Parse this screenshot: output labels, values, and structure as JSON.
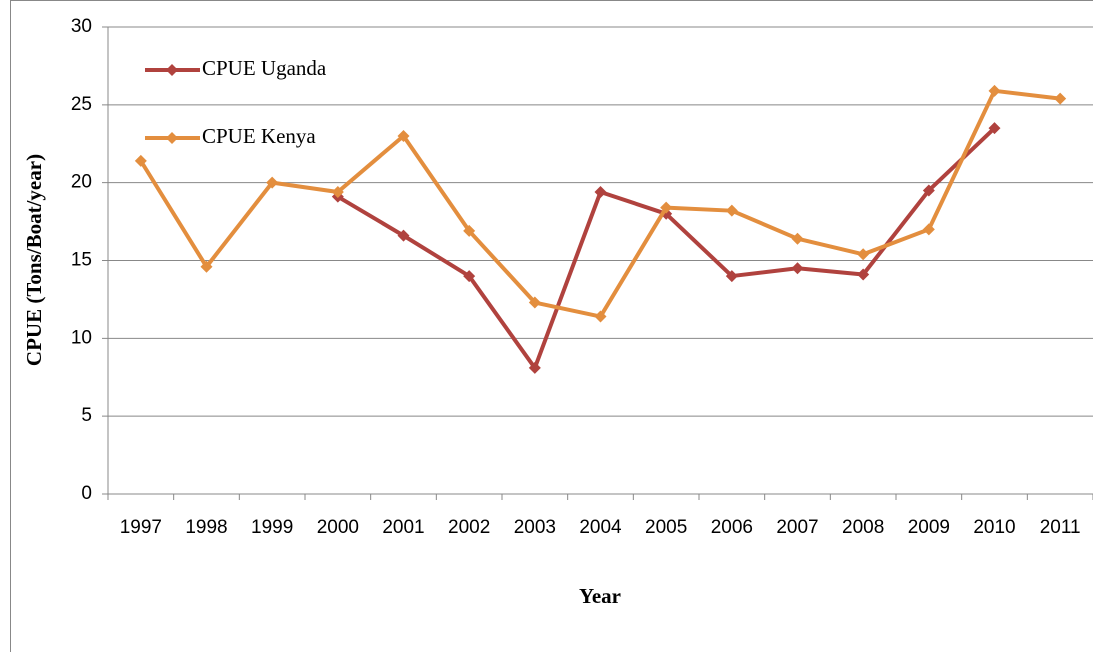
{
  "chart_data": {
    "type": "line",
    "x_label": "Year",
    "y_label": "CPUE (Tons/Boat/year)",
    "categories": [
      "1997",
      "1998",
      "1999",
      "2000",
      "2001",
      "2002",
      "2003",
      "2004",
      "2005",
      "2006",
      "2007",
      "2008",
      "2009",
      "2010",
      "2011"
    ],
    "series": [
      {
        "name": "CPUE Uganda",
        "color": "#b0423e",
        "values": [
          null,
          null,
          null,
          19.1,
          16.6,
          14.0,
          8.1,
          19.4,
          18.0,
          14.0,
          14.5,
          14.1,
          19.5,
          23.5,
          null
        ]
      },
      {
        "name": "CPUE Kenya",
        "color": "#e38e3e",
        "values": [
          21.4,
          14.6,
          20.0,
          19.4,
          23.0,
          16.9,
          12.3,
          11.4,
          18.4,
          18.2,
          16.4,
          15.4,
          17.0,
          25.9,
          25.4
        ]
      }
    ],
    "ylim": [
      0,
      30
    ],
    "yticks": [
      0,
      5,
      10,
      15,
      20,
      25,
      30
    ],
    "grid": true,
    "legend": "upper left"
  }
}
